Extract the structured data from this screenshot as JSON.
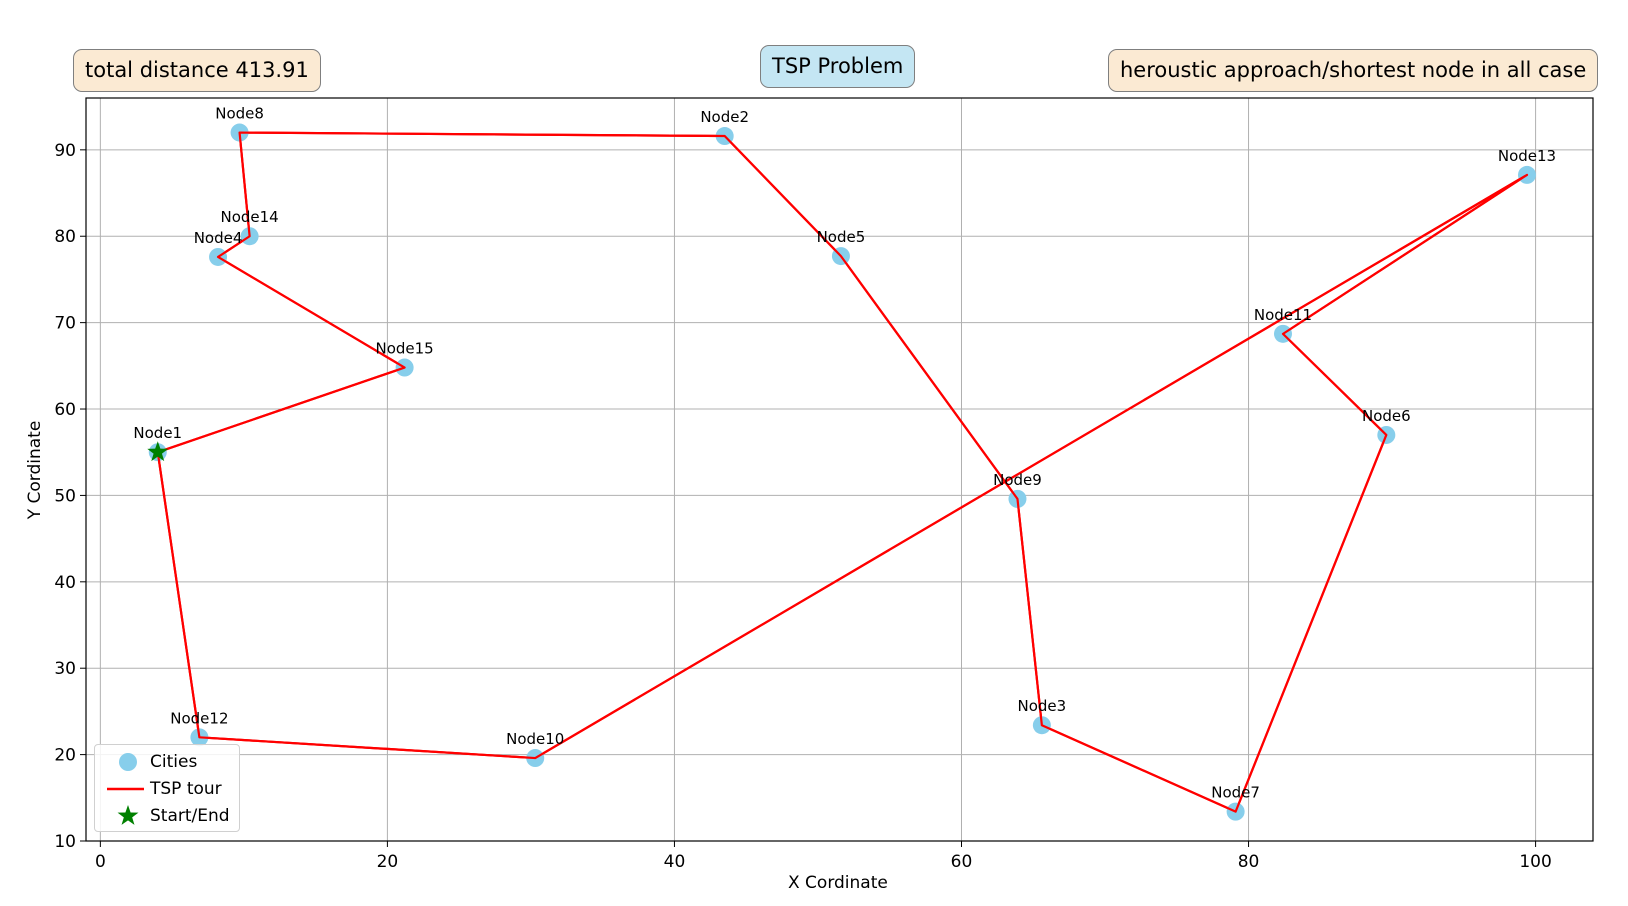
{
  "annotations": {
    "distance": "total distance 413.91",
    "title": "TSP Problem",
    "method": "heroustic approach/shortest node in all case"
  },
  "colors": {
    "cities": "#87ceeb",
    "tour": "#ff0000",
    "start": "#008000"
  },
  "chart_data": {
    "type": "scatter",
    "title": "TSP Problem",
    "xlabel": "X Cordinate",
    "ylabel": "Y Cordinate",
    "xlim": [
      -1,
      104
    ],
    "ylim": [
      10,
      96
    ],
    "xticks": [
      0,
      20,
      40,
      60,
      80,
      100
    ],
    "yticks": [
      10,
      20,
      30,
      40,
      50,
      60,
      70,
      80,
      90
    ],
    "grid": true,
    "legend_placement": "bottom-left",
    "legend": [
      "Cities",
      "TSP tour",
      "Start/End"
    ],
    "nodes": [
      {
        "name": "Node1",
        "x": 4.0,
        "y": 55.0
      },
      {
        "name": "Node2",
        "x": 43.5,
        "y": 91.6
      },
      {
        "name": "Node3",
        "x": 65.6,
        "y": 23.4
      },
      {
        "name": "Node4",
        "x": 8.2,
        "y": 77.6
      },
      {
        "name": "Node5",
        "x": 51.6,
        "y": 77.7
      },
      {
        "name": "Node6",
        "x": 89.6,
        "y": 57.0
      },
      {
        "name": "Node7",
        "x": 79.1,
        "y": 13.4
      },
      {
        "name": "Node8",
        "x": 9.7,
        "y": 92.0
      },
      {
        "name": "Node9",
        "x": 63.9,
        "y": 49.6
      },
      {
        "name": "Node10",
        "x": 30.3,
        "y": 19.6
      },
      {
        "name": "Node11",
        "x": 82.4,
        "y": 68.7
      },
      {
        "name": "Node12",
        "x": 6.9,
        "y": 22.0
      },
      {
        "name": "Node13",
        "x": 99.4,
        "y": 87.1
      },
      {
        "name": "Node14",
        "x": 10.4,
        "y": 80.0
      },
      {
        "name": "Node15",
        "x": 21.2,
        "y": 64.8
      }
    ],
    "tour": [
      "Node1",
      "Node15",
      "Node4",
      "Node14",
      "Node8",
      "Node2",
      "Node5",
      "Node9",
      "Node3",
      "Node7",
      "Node6",
      "Node11",
      "Node13",
      "Node10",
      "Node12",
      "Node1"
    ],
    "start": "Node1"
  }
}
